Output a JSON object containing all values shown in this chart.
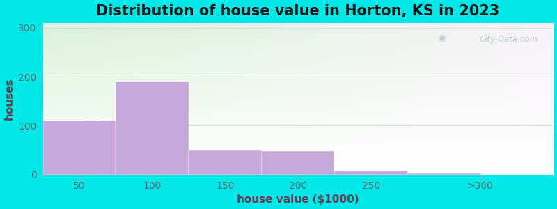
{
  "title": "Distribution of house value in Horton, KS in 2023",
  "xlabel": "house value ($1000)",
  "ylabel": "houses",
  "bar_heights": [
    110,
    190,
    50,
    48,
    9,
    3
  ],
  "bar_color": "#c8a8d8",
  "bar_edgecolor": "#c8a8d8",
  "bg_color": "#00e8e8",
  "yticks": [
    0,
    100,
    200,
    300
  ],
  "ylim": [
    0,
    310
  ],
  "xlim": [
    0,
    350
  ],
  "title_fontsize": 15,
  "axis_label_fontsize": 11,
  "tick_fontsize": 10,
  "tick_color": "#507070",
  "label_color": "#604050",
  "watermark_text": "City-Data.com"
}
